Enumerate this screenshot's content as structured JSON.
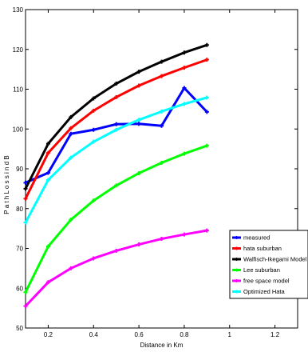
{
  "chart_data": {
    "type": "line",
    "xlabel": "Distance in Km",
    "ylabel": "P a t h  L o s s  i n  d B",
    "xlim": [
      0.1,
      1.3
    ],
    "ylim": [
      50,
      130
    ],
    "xticks": [
      {
        "value": 0.2,
        "label": "0.2"
      },
      {
        "value": 0.4,
        "label": "0.4"
      },
      {
        "value": 0.6,
        "label": "0.6"
      },
      {
        "value": 0.8,
        "label": "0.8"
      },
      {
        "value": 1.0,
        "label": "1"
      },
      {
        "value": 1.2,
        "label": "1.2"
      }
    ],
    "yticks": [
      {
        "value": 50,
        "label": "50"
      },
      {
        "value": 60,
        "label": "60"
      },
      {
        "value": 70,
        "label": "70"
      },
      {
        "value": 80,
        "label": "80"
      },
      {
        "value": 90,
        "label": "90"
      },
      {
        "value": 100,
        "label": "100"
      },
      {
        "value": 110,
        "label": "110"
      },
      {
        "value": 120,
        "label": "120"
      },
      {
        "value": 130,
        "label": "130"
      }
    ],
    "grid": false,
    "legend_position": "bottom-right",
    "series": [
      {
        "name": "measured",
        "color": "#0000ff",
        "x": [
          0.1,
          0.2,
          0.3,
          0.4,
          0.5,
          0.6,
          0.7,
          0.8,
          0.9
        ],
        "y": [
          86.5,
          89,
          98.8,
          99.8,
          101.2,
          101.3,
          100.8,
          110.3,
          104.3
        ]
      },
      {
        "name": "hata suburban",
        "color": "#ff0000",
        "x": [
          0.1,
          0.2,
          0.3,
          0.4,
          0.5,
          0.6,
          0.7,
          0.8,
          0.9
        ],
        "y": [
          82.5,
          94,
          100.2,
          104.6,
          108,
          110.9,
          113.3,
          115.4,
          117.4
        ]
      },
      {
        "name": "Walfisch-Ikegami Model",
        "color": "#000000",
        "x": [
          0.1,
          0.2,
          0.3,
          0.4,
          0.5,
          0.6,
          0.7,
          0.8,
          0.9
        ],
        "y": [
          85,
          96.3,
          103,
          107.7,
          111.4,
          114.4,
          116.9,
          119.2,
          121.1
        ]
      },
      {
        "name": "Lee suburban",
        "color": "#00ff00",
        "x": [
          0.1,
          0.2,
          0.3,
          0.4,
          0.5,
          0.6,
          0.7,
          0.8,
          0.9
        ],
        "y": [
          59,
          70.5,
          77.2,
          82,
          85.8,
          88.9,
          91.5,
          93.8,
          95.8
        ]
      },
      {
        "name": "free space model",
        "color": "#ff00ff",
        "x": [
          0.1,
          0.2,
          0.3,
          0.4,
          0.5,
          0.6,
          0.7,
          0.8,
          0.9
        ],
        "y": [
          55.5,
          61.5,
          65,
          67.5,
          69.4,
          71,
          72.4,
          73.5,
          74.5
        ]
      },
      {
        "name": "Optimized Hata",
        "color": "#00ffff",
        "x": [
          0.1,
          0.2,
          0.3,
          0.4,
          0.5,
          0.6,
          0.7,
          0.8,
          0.9
        ],
        "y": [
          76.5,
          87.2,
          92.8,
          96.8,
          99.8,
          102.3,
          104.4,
          106.3,
          107.9
        ]
      }
    ]
  }
}
